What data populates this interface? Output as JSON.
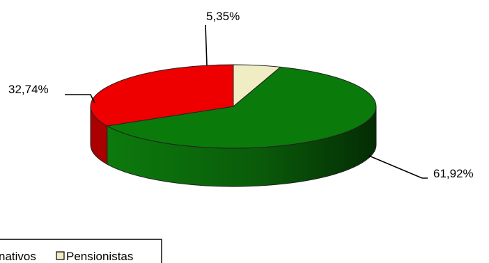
{
  "chart_data": {
    "type": "pie",
    "style": "3d",
    "slices": [
      {
        "label": "Pensionistas",
        "value": 5.35,
        "display": "5,35%",
        "color": "#f0ecc4"
      },
      {
        "label": "",
        "value": 61.92,
        "display": "61,92%",
        "color": "#0a7a0a"
      },
      {
        "label": "",
        "value": 32.74,
        "display": "32,74%",
        "color": "#ee0000"
      }
    ],
    "legend": {
      "placement": "bottom-left",
      "partial_text": "nativos",
      "entries": [
        "Pensionistas"
      ]
    }
  }
}
